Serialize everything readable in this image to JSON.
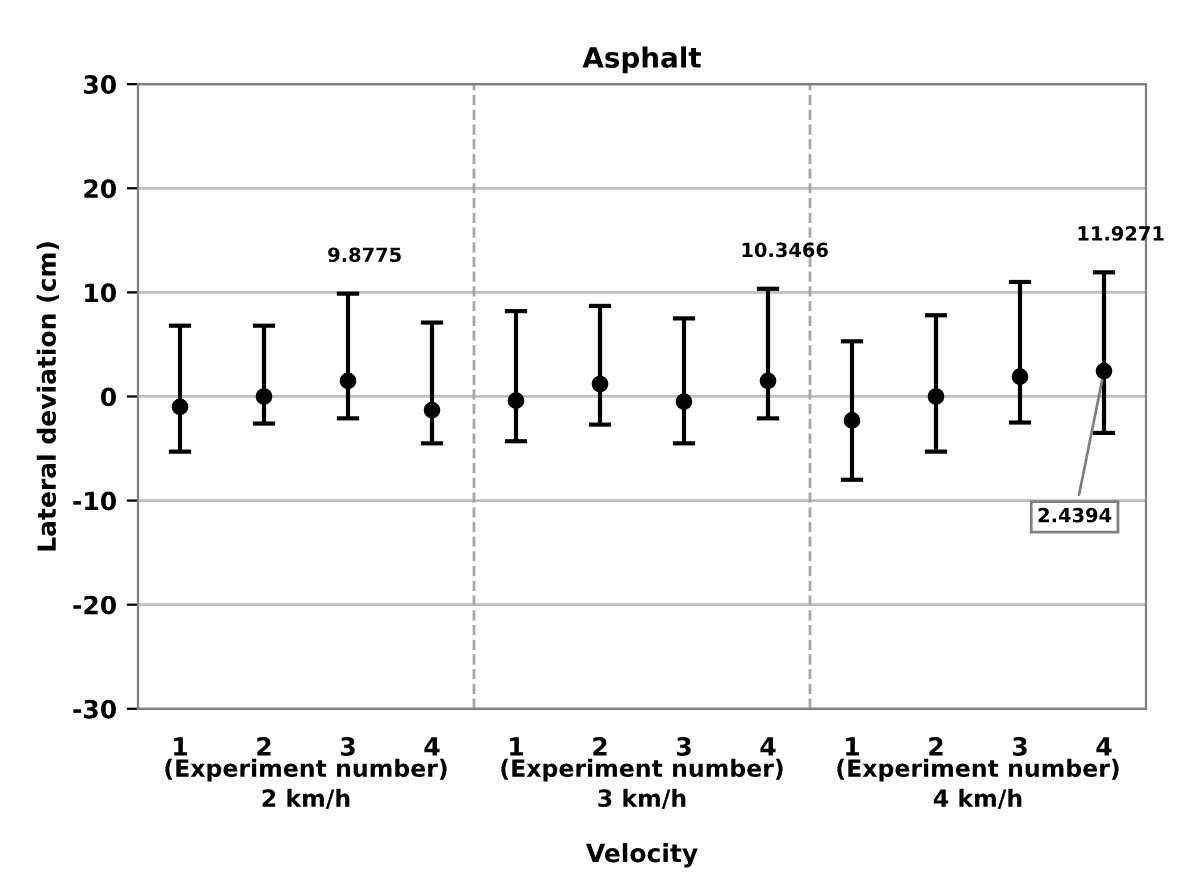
{
  "chart_data": {
    "type": "scatter",
    "title": "Asphalt",
    "xlabel": "Velocity",
    "ylabel": "Lateral deviation (cm)",
    "categories": [
      "1",
      "2",
      "3",
      "4",
      "1",
      "2",
      "3",
      "4",
      "1",
      "2",
      "3",
      "4"
    ],
    "series": [
      {
        "color": "#000000",
        "values": [
          -1.0,
          0.0,
          1.5,
          -1.3,
          -0.4,
          1.2,
          -0.5,
          1.5,
          -2.3,
          0.0,
          1.9,
          2.4394
        ],
        "errors": [
          [
            -5.3,
            6.8
          ],
          [
            -2.6,
            6.8
          ],
          [
            -2.1,
            9.8775
          ],
          [
            -4.5,
            7.1
          ],
          [
            -4.3,
            8.2
          ],
          [
            -2.7,
            8.7
          ],
          [
            -4.5,
            7.5
          ],
          [
            -2.1,
            10.3466
          ],
          [
            -8.0,
            5.3
          ],
          [
            -5.3,
            7.8
          ],
          [
            -2.5,
            11.0
          ],
          [
            -3.5,
            11.9271
          ]
        ],
        "value_labels": [
          null,
          null,
          null,
          null,
          null,
          null,
          null,
          null,
          null,
          null,
          null,
          "2.4394"
        ]
      }
    ],
    "marker": "circle",
    "grid": "y",
    "ylim": [
      -30,
      30
    ],
    "yticks": [
      -30,
      -20,
      -10,
      0,
      10,
      20,
      30
    ],
    "annotations": [
      {
        "text": "9.8775",
        "y": 9.8775
      },
      {
        "text": "10.3466",
        "y": 10.3466
      },
      {
        "text": "11.9271",
        "y": 11.9271
      },
      "(Experiment number)\n2 km/h",
      "(Experiment number)\n3 km/h",
      "(Experiment number)\n4 km/h"
    ]
  }
}
